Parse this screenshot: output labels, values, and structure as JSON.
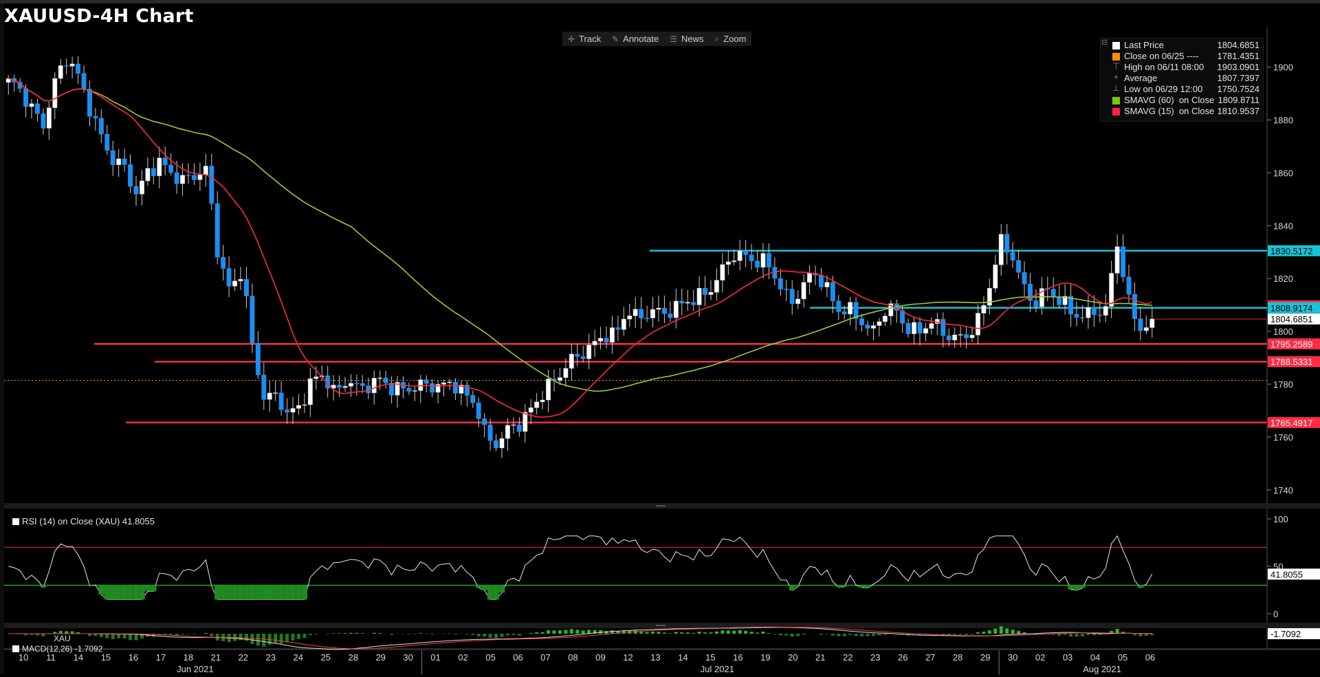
{
  "title": "XAUUSD-4H Chart",
  "toolbar": [
    {
      "label": "Track",
      "icon": "crosshair-icon"
    },
    {
      "label": "Annotate",
      "icon": "pencil-icon"
    },
    {
      "label": "News",
      "icon": "news-icon"
    },
    {
      "label": "Zoom",
      "icon": "magnifier-icon"
    }
  ],
  "legend": [
    {
      "label": "Last Price",
      "value": "1804.6851",
      "color": "#ffffff",
      "glyph": ""
    },
    {
      "label": "Close on 06/25 ----",
      "value": "1781.4351",
      "color": "#ff8c00",
      "glyph": ""
    },
    {
      "label": "High on 06/11 08:00",
      "value": "1903.0901",
      "color": "",
      "glyph": "⊤"
    },
    {
      "label": "Average",
      "value": "1807.7397",
      "color": "",
      "glyph": "+"
    },
    {
      "label": "Low on 06/29 12:00",
      "value": "1750.7524",
      "color": "",
      "glyph": "⊥"
    },
    {
      "label": "SMAVG (60)  on Close",
      "value": "1809.8711",
      "color": "#7ac800",
      "glyph": ""
    },
    {
      "label": "SMAVG (15)  on Close",
      "value": "1810.9537",
      "color": "#ff1f4b",
      "glyph": ""
    }
  ],
  "rsi_legend": "RSI (14)  on Close (XAU) 41.8055",
  "macd_legend": "MACD(12,26) -1.7092",
  "macd_series_label": "XAU",
  "colors": {
    "up": "#ffffff",
    "down": "#1c8ef2",
    "sma60": "#9acd32",
    "sma15": "#ff2a3a",
    "support": "#ff2b45",
    "resistance": "#19c3d4",
    "close_line": "#ff9900"
  },
  "price_axis": {
    "min": 1735,
    "max": 1915,
    "ticks": [
      "1740",
      "1760",
      "1780",
      "1800",
      "1820",
      "1840",
      "1860",
      "1880",
      "1900"
    ]
  },
  "rsi_axis": {
    "ticks": [
      "0",
      "50",
      "100"
    ],
    "levels": [
      30,
      70
    ],
    "value_label": "41.8055"
  },
  "macd_axis": {
    "value_label": "-1.7092"
  },
  "date_axis": {
    "days": [
      "10",
      "11",
      "14",
      "15",
      "16",
      "17",
      "18",
      "21",
      "22",
      "23",
      "24",
      "25",
      "28",
      "29",
      "30",
      "01",
      "02",
      "05",
      "06",
      "07",
      "08",
      "09",
      "12",
      "13",
      "14",
      "15",
      "16",
      "19",
      "20",
      "21",
      "22",
      "23",
      "26",
      "27",
      "28",
      "29",
      "30",
      "02",
      "03",
      "04",
      "05",
      "06"
    ],
    "months": [
      {
        "label": "Jun 2021",
        "after_day": 6
      },
      {
        "label": "Jul 2021",
        "after_day": 25
      },
      {
        "label": "Aug 2021",
        "after_day": 39
      }
    ]
  },
  "chart_data": [
    {
      "type": "candlestick",
      "title": "XAUUSD-4H Chart",
      "ylim": [
        1735,
        1915
      ],
      "last_price": 1804.6851,
      "horizontal_levels": [
        {
          "label": "1830.5172",
          "value": 1830.5172,
          "color": "#19c3d4"
        },
        {
          "label": "1808.9174",
          "value": 1808.9174,
          "color": "#19c3d4"
        },
        {
          "label": "1795.2589",
          "value": 1795.2589,
          "color": "#ff2b45"
        },
        {
          "label": "1788.5331",
          "value": 1788.5331,
          "color": "#ff2b45"
        },
        {
          "label": "1765.4917",
          "value": 1765.4917,
          "color": "#ff2b45"
        }
      ],
      "close_reference": 1781.4351,
      "sma_60_last": 1809.8711,
      "sma_15_last": 1810.9537,
      "close_path": [
        1893,
        1890,
        1885,
        1880,
        1895,
        1902,
        1895,
        1885,
        1875,
        1865,
        1860,
        1850,
        1862,
        1866,
        1860,
        1855,
        1858,
        1862,
        1830,
        1815,
        1822,
        1790,
        1775,
        1778,
        1768,
        1770,
        1780,
        1785,
        1778,
        1782,
        1776,
        1779,
        1783,
        1780,
        1778,
        1777,
        1779,
        1780,
        1783,
        1776,
        1771,
        1758,
        1759,
        1766,
        1765,
        1770,
        1777,
        1784,
        1790,
        1791,
        1792,
        1798,
        1800,
        1810,
        1804,
        1806,
        1806,
        1810,
        1813,
        1812,
        1813,
        1821,
        1831,
        1830,
        1826,
        1824,
        1818,
        1812,
        1818,
        1822,
        1815,
        1808,
        1810,
        1806,
        1798,
        1806,
        1808,
        1803,
        1801,
        1803,
        1798,
        1797,
        1800,
        1804,
        1815,
        1832,
        1829,
        1818,
        1812,
        1815,
        1810,
        1808,
        1807,
        1809,
        1806,
        1832,
        1811,
        1803,
        1804.69
      ],
      "rsi_last": 41.8055,
      "macd_last": -1.7092
    }
  ]
}
